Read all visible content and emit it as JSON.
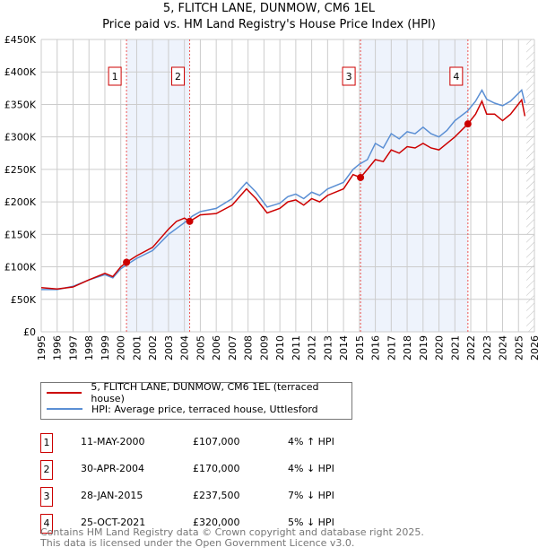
{
  "chart_data": {
    "type": "line",
    "title": "5, FLITCH LANE, DUNMOW, CM6 1EL",
    "subtitle": "Price paid vs. HM Land Registry's House Price Index (HPI)",
    "xlim": [
      1995,
      2026
    ],
    "ylim": [
      0,
      450000
    ],
    "x_ticks": [
      "1995",
      "1996",
      "1997",
      "1998",
      "1999",
      "2000",
      "2001",
      "2002",
      "2003",
      "2004",
      "2005",
      "2006",
      "2007",
      "2008",
      "2009",
      "2010",
      "2011",
      "2012",
      "2013",
      "2014",
      "2015",
      "2016",
      "2017",
      "2018",
      "2019",
      "2020",
      "2021",
      "2022",
      "2023",
      "2024",
      "2025",
      "2026"
    ],
    "y_ticks": [
      {
        "v": 0,
        "l": "£0"
      },
      {
        "v": 50000,
        "l": "£50K"
      },
      {
        "v": 100000,
        "l": "£100K"
      },
      {
        "v": 150000,
        "l": "£150K"
      },
      {
        "v": 200000,
        "l": "£200K"
      },
      {
        "v": 250000,
        "l": "£250K"
      },
      {
        "v": 300000,
        "l": "£300K"
      },
      {
        "v": 350000,
        "l": "£350K"
      },
      {
        "v": 400000,
        "l": "£400K"
      },
      {
        "v": 450000,
        "l": "£450K"
      }
    ],
    "grid": true,
    "shaded_ranges": [
      [
        2000.36,
        2004.33
      ],
      [
        2015.07,
        2021.82
      ]
    ],
    "hatched_from": 2025.5,
    "series": [
      {
        "name": "5, FLITCH LANE, DUNMOW, CM6 1EL (terraced house)",
        "color": "#cc0000",
        "x": [
          1995,
          1996,
          1997,
          1998,
          1999,
          1999.5,
          2000,
          2000.36,
          2001,
          2002,
          2003,
          2003.5,
          2004,
          2004.33,
          2005,
          2006,
          2007,
          2007.9,
          2008.5,
          2009.2,
          2010,
          2010.5,
          2011,
          2011.5,
          2012,
          2012.5,
          2013,
          2014,
          2014.6,
          2015.07,
          2015.5,
          2016,
          2016.5,
          2017,
          2017.5,
          2018,
          2018.5,
          2019,
          2019.5,
          2020,
          2020.5,
          2021,
          2021.82,
          2022.3,
          2022.7,
          2023,
          2023.5,
          2024,
          2024.5,
          2025.2,
          2025.4
        ],
        "values": [
          68000,
          66000,
          69000,
          80000,
          90000,
          85000,
          100000,
          107000,
          117000,
          130000,
          158000,
          170000,
          175000,
          170000,
          180000,
          182000,
          195000,
          220000,
          205000,
          183000,
          190000,
          200000,
          203000,
          195000,
          205000,
          200000,
          210000,
          220000,
          242000,
          237500,
          250000,
          265000,
          262000,
          280000,
          275000,
          285000,
          283000,
          290000,
          283000,
          280000,
          290000,
          300000,
          320000,
          335000,
          355000,
          335000,
          335000,
          325000,
          335000,
          357000,
          332000
        ]
      },
      {
        "name": "HPI: Average price, terraced house, Uttlesford",
        "color": "#5b8fd4",
        "x": [
          1995,
          1996,
          1997,
          1998,
          1999,
          1999.5,
          2000,
          2000.36,
          2001,
          2002,
          2003,
          2004,
          2004.5,
          2005,
          2006,
          2007,
          2007.9,
          2008.5,
          2009.2,
          2010,
          2010.5,
          2011,
          2011.5,
          2012,
          2012.5,
          2013,
          2014,
          2014.6,
          2015,
          2015.5,
          2016,
          2016.5,
          2017,
          2017.5,
          2018,
          2018.5,
          2019,
          2019.5,
          2020,
          2020.5,
          2021,
          2021.8,
          2022.3,
          2022.7,
          2023,
          2023.5,
          2024,
          2024.5,
          2025.2,
          2025.4
        ],
        "values": [
          65000,
          65000,
          70000,
          80000,
          88000,
          83000,
          97000,
          103000,
          113000,
          125000,
          150000,
          168000,
          178000,
          185000,
          190000,
          205000,
          230000,
          215000,
          192000,
          198000,
          208000,
          212000,
          205000,
          215000,
          210000,
          220000,
          230000,
          250000,
          258000,
          265000,
          290000,
          283000,
          305000,
          297000,
          308000,
          305000,
          315000,
          305000,
          300000,
          310000,
          325000,
          340000,
          355000,
          372000,
          358000,
          352000,
          348000,
          355000,
          372000,
          352000
        ]
      }
    ],
    "sales": [
      {
        "n": "1",
        "x": 2000.36,
        "v": 107000,
        "date": "11-MAY-2000",
        "price": "£107,000",
        "hpi": "4% ↑ HPI"
      },
      {
        "n": "2",
        "x": 2004.33,
        "v": 170000,
        "date": "30-APR-2004",
        "price": "£170,000",
        "hpi": "4% ↓ HPI"
      },
      {
        "n": "3",
        "x": 2015.07,
        "v": 237500,
        "date": "28-JAN-2015",
        "price": "£237,500",
        "hpi": "7% ↓ HPI"
      },
      {
        "n": "4",
        "x": 2021.82,
        "v": 320000,
        "date": "25-OCT-2021",
        "price": "£320,000",
        "hpi": "5% ↓ HPI"
      }
    ]
  },
  "footer": {
    "line1": "Contains HM Land Registry data © Crown copyright and database right 2025.",
    "line2": "This data is licensed under the Open Government Licence v3.0."
  }
}
